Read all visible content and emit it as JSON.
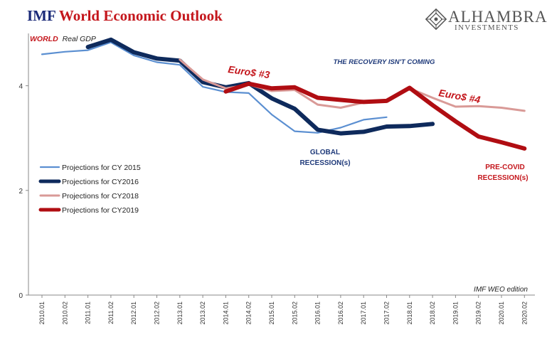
{
  "header": {
    "title_imf": "IMF",
    "title_rest": "World Economic Outlook",
    "logo_name": "ALHAMBRA",
    "logo_sub": "INVESTMENTS",
    "logo_icon": "alhambra-diamond-icon"
  },
  "colors": {
    "cy2015": "#5b8fd1",
    "cy2016": "#0e2a5c",
    "cy2018": "#d99a97",
    "cy2019": "#b00d12",
    "annotation_red": "#c4161c",
    "annotation_blue": "#1f3a7a"
  },
  "chart_data": {
    "type": "line",
    "ylabel_left_red": "WORLD",
    "ylabel_left_rest": "Real GDP",
    "xlabel": "IMF WEO edition",
    "categories": [
      "2010.01",
      "2010.02",
      "2011.01",
      "2011.02",
      "2012.01",
      "2012.02",
      "2013.01",
      "2013.02",
      "2014.01",
      "2014.02",
      "2015.01",
      "2015.02",
      "2016.01",
      "2016.02",
      "2017.01",
      "2017.02",
      "2018.01",
      "2018.02",
      "2019.01",
      "2019.02",
      "2020.01",
      "2020.02"
    ],
    "ylim": [
      0,
      5
    ],
    "yticks": [
      0,
      2,
      4
    ],
    "series": [
      {
        "name": "Projections for CY 2015",
        "color_key": "cy2015",
        "width": 2.2,
        "points": [
          [
            0,
            4.6
          ],
          [
            1,
            4.65
          ],
          [
            2,
            4.68
          ],
          [
            3,
            4.83
          ],
          [
            4,
            4.58
          ],
          [
            5,
            4.45
          ],
          [
            6,
            4.4
          ],
          [
            7,
            3.98
          ],
          [
            8,
            3.88
          ],
          [
            9,
            3.86
          ],
          [
            10,
            3.45
          ],
          [
            11,
            3.13
          ],
          [
            12,
            3.1
          ],
          [
            13,
            3.2
          ],
          [
            14,
            3.35
          ],
          [
            15,
            3.4
          ]
        ]
      },
      {
        "name": "Projections for CY2016",
        "color_key": "cy2016",
        "width": 6,
        "points": [
          [
            2,
            4.74
          ],
          [
            3,
            4.88
          ],
          [
            4,
            4.64
          ],
          [
            5,
            4.52
          ],
          [
            6,
            4.48
          ],
          [
            7,
            4.07
          ],
          [
            8,
            3.97
          ],
          [
            9,
            4.05
          ],
          [
            10,
            3.76
          ],
          [
            11,
            3.56
          ],
          [
            12,
            3.16
          ],
          [
            13,
            3.09
          ],
          [
            14,
            3.12
          ],
          [
            15,
            3.22
          ],
          [
            16,
            3.23
          ],
          [
            17,
            3.27
          ]
        ]
      },
      {
        "name": "Projections for CY2018",
        "color_key": "cy2018",
        "width": 3,
        "points": [
          [
            6,
            4.5
          ],
          [
            7,
            4.12
          ],
          [
            8,
            3.95
          ],
          [
            9,
            4.02
          ],
          [
            10,
            3.9
          ],
          [
            11,
            3.92
          ],
          [
            12,
            3.64
          ],
          [
            13,
            3.58
          ],
          [
            14,
            3.68
          ],
          [
            15,
            3.71
          ],
          [
            16,
            3.95
          ],
          [
            17,
            3.77
          ],
          [
            18,
            3.6
          ],
          [
            19,
            3.61
          ],
          [
            20,
            3.58
          ],
          [
            21,
            3.52
          ]
        ]
      },
      {
        "name": "Projections for CY2019",
        "color_key": "cy2019",
        "width": 6,
        "points": [
          [
            8,
            3.89
          ],
          [
            9,
            4.04
          ],
          [
            10,
            3.95
          ],
          [
            11,
            3.97
          ],
          [
            12,
            3.77
          ],
          [
            13,
            3.73
          ],
          [
            14,
            3.69
          ],
          [
            15,
            3.71
          ],
          [
            16,
            3.96
          ],
          [
            17,
            3.63
          ],
          [
            18,
            3.32
          ],
          [
            19,
            3.03
          ],
          [
            20,
            2.92
          ],
          [
            21,
            2.8
          ]
        ]
      }
    ],
    "annotations": [
      {
        "text": "THE RECOVERY ISN'T COMING",
        "color_key": "annotation_blue"
      },
      {
        "text": "Euro$ #3",
        "color_key": "annotation_red"
      },
      {
        "text": "Euro$ #4",
        "color_key": "annotation_red"
      },
      {
        "text": "GLOBAL",
        "color_key": "annotation_blue"
      },
      {
        "text": "RECESSION(s)",
        "color_key": "annotation_blue"
      },
      {
        "text": "PRE-COVID",
        "color_key": "annotation_red"
      },
      {
        "text": "RECESSION(s)",
        "color_key": "annotation_red"
      }
    ],
    "legend_position": "left-middle",
    "grid": false
  }
}
